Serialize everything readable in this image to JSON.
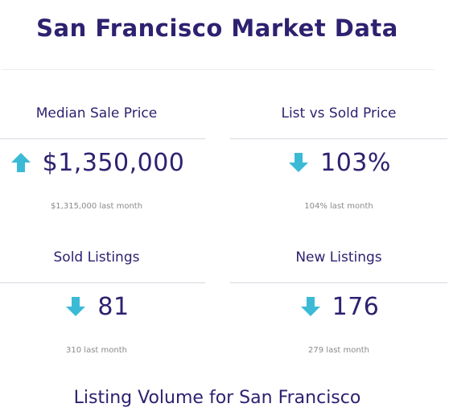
{
  "header": {
    "title": "San Francisco Market Data"
  },
  "stats": [
    {
      "label": "Median Sale Price",
      "value": "$1,350,000",
      "direction": "up",
      "previous": "$1,315,000 last month",
      "icon": "arrow-up-icon"
    },
    {
      "label": "List vs Sold Price",
      "value": "103%",
      "direction": "down",
      "previous": "104% last month",
      "icon": "arrow-down-icon"
    },
    {
      "label": "Sold Listings",
      "value": "81",
      "direction": "down",
      "previous": "310 last month",
      "icon": "arrow-down-icon"
    },
    {
      "label": "New Listings",
      "value": "176",
      "direction": "down",
      "previous": "279 last month",
      "icon": "arrow-down-icon"
    }
  ],
  "section": {
    "title": "Listing Volume for San Francisco"
  },
  "colors": {
    "title": "#2e2170",
    "arrow": "#3bbad6",
    "sub_text": "#8a8a8a",
    "divider": "#d6d6e0"
  }
}
